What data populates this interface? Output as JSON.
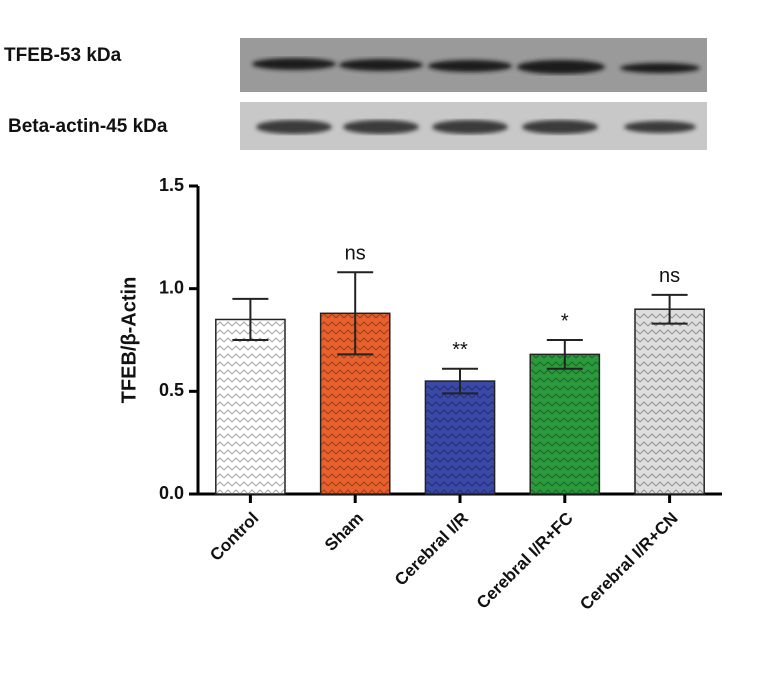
{
  "chart_data": {
    "type": "bar",
    "blot_labels": [
      "TFEB-53 kDa",
      "Beta-actin-45 kDa"
    ],
    "ylabel": "TFEB/β-Actin",
    "categories": [
      "Control",
      "Sham",
      "Cerebral I/R",
      "Cerebral I/R+FC",
      "Cerebral I/R+CN"
    ],
    "values": [
      0.85,
      0.88,
      0.55,
      0.68,
      0.9
    ],
    "errors": [
      0.1,
      0.2,
      0.06,
      0.07,
      0.07
    ],
    "annotations": [
      null,
      "ns",
      "**",
      "*",
      "ns"
    ],
    "colors": [
      "#ffffff",
      "#e8612c",
      "#3a48a8",
      "#2b9a3c",
      "#dedede"
    ],
    "ylim": [
      0,
      1.5
    ],
    "yticks": [
      {
        "value": 0,
        "label": "0.0"
      },
      {
        "value": 0.5,
        "label": "0.5"
      },
      {
        "value": 1,
        "label": "1.0"
      },
      {
        "value": 1.5,
        "label": "1.5"
      }
    ]
  }
}
